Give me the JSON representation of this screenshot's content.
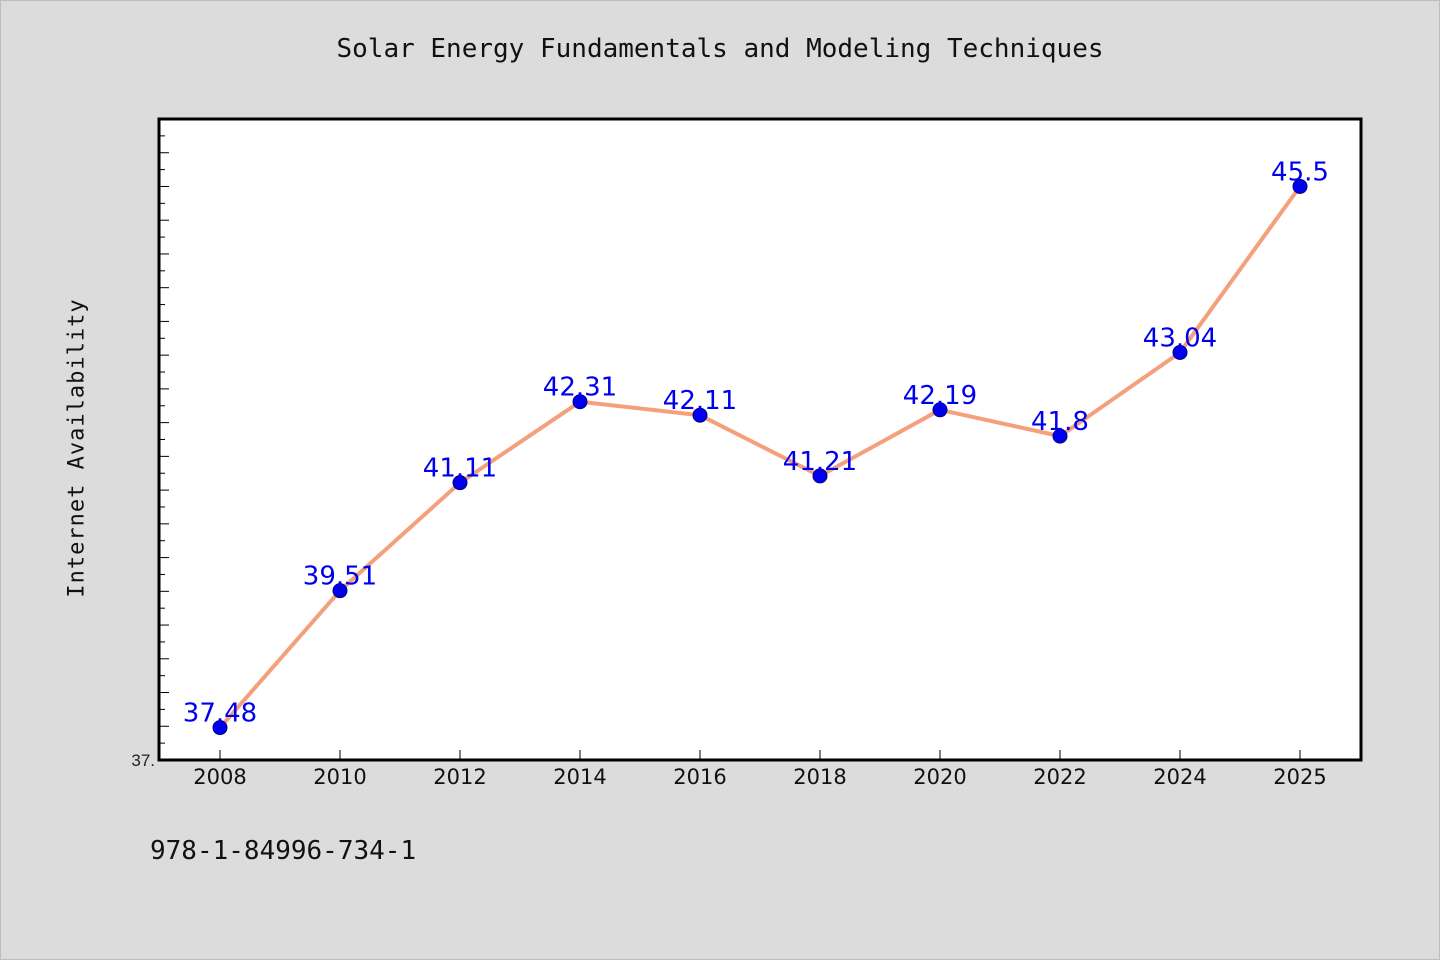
{
  "chart_data": {
    "type": "line",
    "title": "Solar Energy Fundamentals and Modeling Techniques",
    "xlabel": "",
    "ylabel": "Internet Availability",
    "categories": [
      "2008",
      "2010",
      "2012",
      "2014",
      "2016",
      "2018",
      "2020",
      "2022",
      "2024",
      "2025"
    ],
    "series": [
      {
        "values": [
          37.48,
          39.51,
          41.11,
          42.31,
          42.11,
          41.21,
          42.19,
          41.8,
          43.04,
          45.5
        ],
        "labels": [
          "37.48",
          "39.51",
          "41.11",
          "42.31",
          "42.11",
          "41.21",
          "42.19",
          "41.8",
          "43.04",
          "45.5"
        ]
      }
    ],
    "ylim": [
      37.0,
      46.5
    ],
    "y_tick_label": "37.",
    "grid": false,
    "colors": {
      "line": "#f4a07c",
      "marker": "#0000ee",
      "marker_edge": "#000080",
      "label": "#0000ee"
    }
  },
  "footer": {
    "isbn": "978-1-84996-734-1"
  }
}
